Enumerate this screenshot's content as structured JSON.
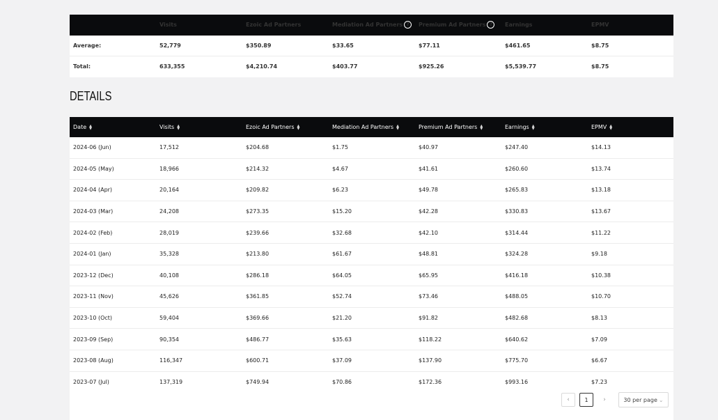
{
  "summary": {
    "headers": [
      "",
      "Visits",
      "Ezoic Ad Partners",
      "Mediation Ad Partners",
      "Premium Ad Partners",
      "Earnings",
      "EPMV"
    ],
    "rows": [
      [
        "Average:",
        "52,779",
        "$350.89",
        "$33.65",
        "$77.11",
        "$461.65",
        "$8.75"
      ],
      [
        "Total:",
        "633,355",
        "$4,210.74",
        "$403.77",
        "$925.26",
        "$5,539.77",
        "$8.75"
      ]
    ]
  },
  "details": {
    "title": "DETAILS",
    "headers": [
      "Date",
      "Visits",
      "Ezoic Ad Partners",
      "Mediation Ad Partners",
      "Premium Ad Partners",
      "Earnings",
      "EPMV"
    ],
    "rows": [
      [
        "2024-06 (Jun)",
        "17,512",
        "$204.68",
        "$1.75",
        "$40.97",
        "$247.40",
        "$14.13"
      ],
      [
        "2024-05 (May)",
        "18,966",
        "$214.32",
        "$4.67",
        "$41.61",
        "$260.60",
        "$13.74"
      ],
      [
        "2024-04 (Apr)",
        "20,164",
        "$209.82",
        "$6.23",
        "$49.78",
        "$265.83",
        "$13.18"
      ],
      [
        "2024-03 (Mar)",
        "24,208",
        "$273.35",
        "$15.20",
        "$42.28",
        "$330.83",
        "$13.67"
      ],
      [
        "2024-02 (Feb)",
        "28,019",
        "$239.66",
        "$32.68",
        "$42.10",
        "$314.44",
        "$11.22"
      ],
      [
        "2024-01 (Jan)",
        "35,328",
        "$213.80",
        "$61.67",
        "$48.81",
        "$324.28",
        "$9.18"
      ],
      [
        "2023-12 (Dec)",
        "40,108",
        "$286.18",
        "$64.05",
        "$65.95",
        "$416.18",
        "$10.38"
      ],
      [
        "2023-11 (Nov)",
        "45,626",
        "$361.85",
        "$52.74",
        "$73.46",
        "$488.05",
        "$10.70"
      ],
      [
        "2023-10 (Oct)",
        "59,404",
        "$369.66",
        "$21.20",
        "$91.82",
        "$482.68",
        "$8.13"
      ],
      [
        "2023-09 (Sep)",
        "90,354",
        "$486.77",
        "$35.63",
        "$118.22",
        "$640.62",
        "$7.09"
      ],
      [
        "2023-08 (Aug)",
        "116,347",
        "$600.71",
        "$37.09",
        "$137.90",
        "$775.70",
        "$6.67"
      ],
      [
        "2023-07 (Jul)",
        "137,319",
        "$749.94",
        "$70.86",
        "$172.36",
        "$993.16",
        "$7.23"
      ]
    ]
  },
  "pagination": {
    "prev_icon": "‹",
    "page": "1",
    "next_icon": "›",
    "per_page": "30 per page",
    "per_page_chevron": "⌄"
  }
}
